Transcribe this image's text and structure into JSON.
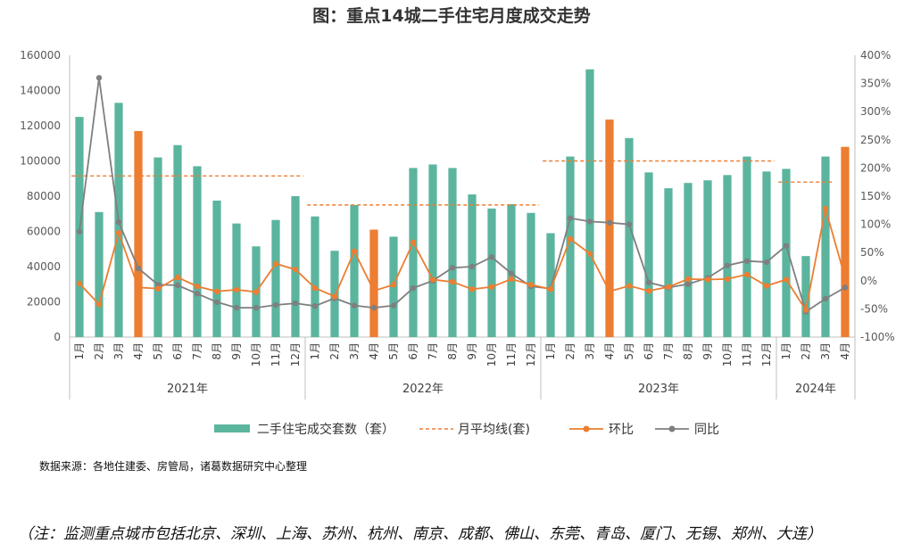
{
  "chart_data": {
    "type": "bar",
    "title": "图：重点14城二手住宅月度成交走势",
    "years": [
      {
        "label": "2021年",
        "months": [
          "1月",
          "2月",
          "3月",
          "4月",
          "5月",
          "6月",
          "7月",
          "8月",
          "9月",
          "10月",
          "11月",
          "12月"
        ]
      },
      {
        "label": "2022年",
        "months": [
          "1月",
          "2月",
          "3月",
          "4月",
          "5月",
          "6月",
          "7月",
          "8月",
          "9月",
          "10月",
          "11月",
          "12月"
        ]
      },
      {
        "label": "2023年",
        "months": [
          "1月",
          "2月",
          "3月",
          "4月",
          "5月",
          "6月",
          "7月",
          "8月",
          "9月",
          "10月",
          "11月",
          "12月"
        ]
      },
      {
        "label": "2024年",
        "months": [
          "1月",
          "2月",
          "3月",
          "4月"
        ]
      }
    ],
    "y_left": {
      "ticks": [
        "0",
        "20000",
        "40000",
        "60000",
        "80000",
        "100000",
        "120000",
        "140000",
        "160000"
      ],
      "min": 0,
      "max": 160000
    },
    "y_right": {
      "ticks": [
        "-100%",
        "-50%",
        "0%",
        "50%",
        "100%",
        "150%",
        "200%",
        "250%",
        "300%",
        "350%",
        "400%"
      ],
      "min": -100,
      "max": 400
    },
    "series": [
      {
        "name": "二手住宅成交套数（套）",
        "type": "bar",
        "color": "#5bb59e",
        "highlight_color": "#ed7d31",
        "values": [
          125000,
          71000,
          133000,
          117000,
          102000,
          109000,
          97000,
          77500,
          64500,
          51500,
          66500,
          80000,
          68500,
          49000,
          75000,
          61000,
          57000,
          96000,
          98000,
          96000,
          81000,
          73000,
          75500,
          70500,
          59000,
          102500,
          152000,
          123500,
          113000,
          93500,
          84500,
          87500,
          89000,
          92000,
          102500,
          94000,
          95500,
          46000,
          102500,
          108000
        ],
        "highlight": [
          3,
          15,
          27,
          39
        ]
      },
      {
        "name": "月平均线(套)",
        "type": "dashed",
        "color": "#ed7d31",
        "segments": [
          {
            "from": 0,
            "to": 11,
            "value": 91500
          },
          {
            "from": 12,
            "to": 23,
            "value": 75000
          },
          {
            "from": 24,
            "to": 35,
            "value": 100000
          },
          {
            "from": 36,
            "to": 38,
            "value": 88000
          }
        ]
      },
      {
        "name": "环比",
        "type": "line",
        "color": "#ed7d31",
        "axis": "right",
        "values": [
          -5,
          -42,
          85,
          -12,
          -14,
          6,
          -10,
          -19,
          -16,
          -20,
          30,
          20,
          -13,
          -28,
          52,
          -18,
          -7,
          68,
          2,
          -2,
          -15,
          -11,
          3,
          -7,
          -15,
          74,
          48,
          -19,
          -9,
          -18,
          -11,
          3,
          2,
          3,
          11,
          -9,
          2,
          -52,
          128,
          5
        ]
      },
      {
        "name": "同比",
        "type": "line",
        "color": "#7f7f7f",
        "axis": "right",
        "values": [
          87,
          360,
          104,
          22,
          -7,
          -8,
          -23,
          -38,
          -48,
          -48,
          -43,
          -40,
          -45,
          -31,
          -44,
          -48,
          -44,
          -13,
          0,
          23,
          25,
          42,
          13,
          -10,
          -14,
          111,
          105,
          103,
          100,
          -3,
          -12,
          -6,
          5,
          27,
          35,
          33,
          62,
          -55,
          -32,
          -12
        ]
      }
    ],
    "legend_position": "bottom",
    "source": "数据来源：各地住建委、房管局，诸葛数据研究中心整理",
    "note": "（注：监测重点城市包括北京、深圳、上海、苏州、杭州、南京、成都、佛山、东莞、青岛、厦门、无锡、郑州、大连）"
  }
}
